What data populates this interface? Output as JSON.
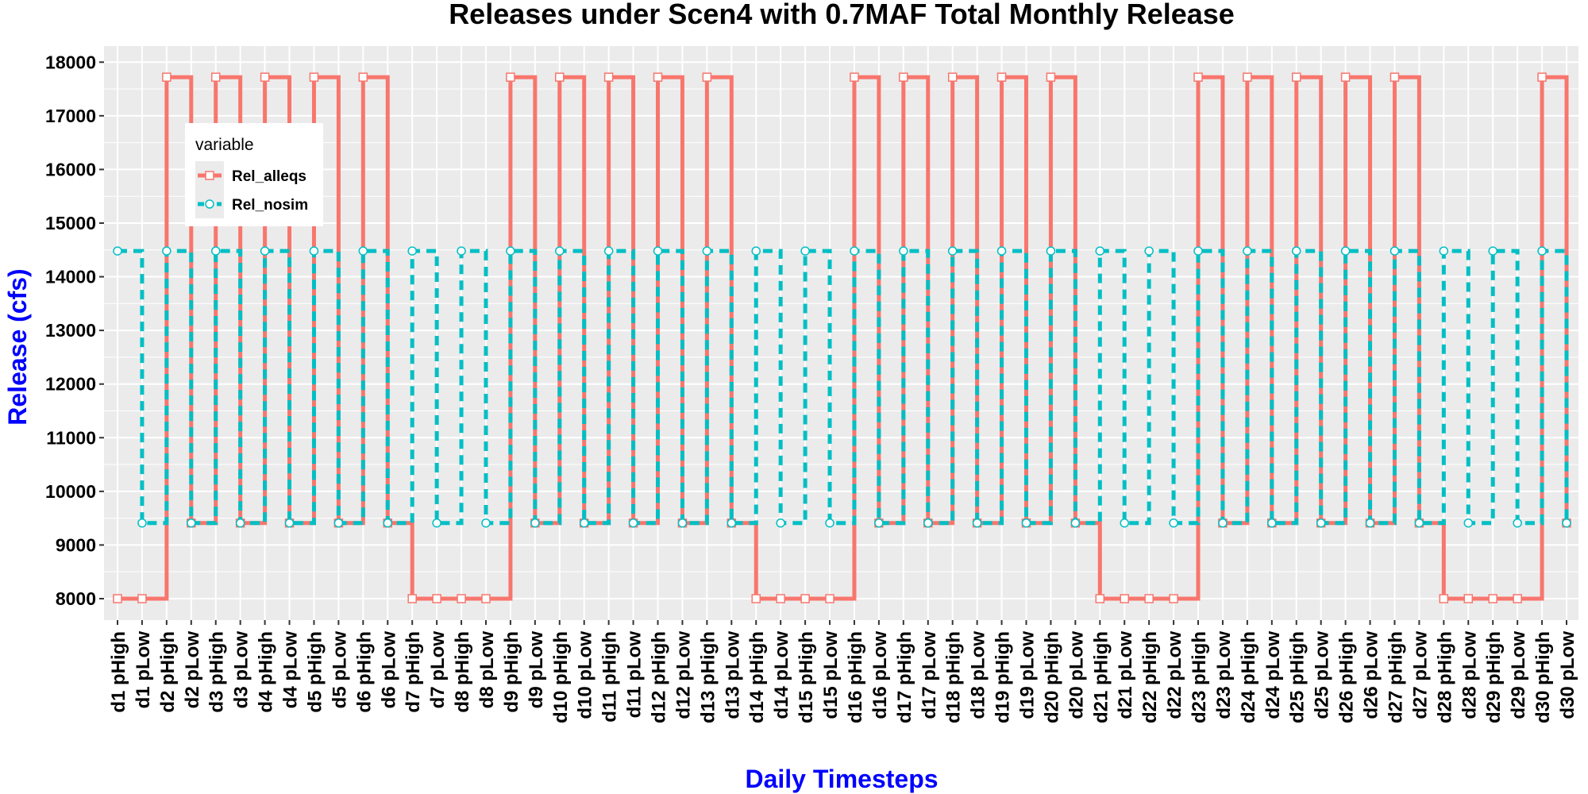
{
  "chart_data": {
    "type": "line",
    "title": "Releases under Scen4 with 0.7MAF Total Monthly Release",
    "xlabel": "Daily Timesteps",
    "ylabel": "Release (cfs)",
    "step": true,
    "ylim": [
      7600,
      18300
    ],
    "yticks": [
      8000,
      9000,
      10000,
      11000,
      12000,
      13000,
      14000,
      15000,
      16000,
      17000,
      18000
    ],
    "grid": true,
    "categories": [
      "d1 pHigh",
      "d1 pLow",
      "d2 pHigh",
      "d2 pLow",
      "d3 pHigh",
      "d3 pLow",
      "d4 pHigh",
      "d4 pLow",
      "d5 pHigh",
      "d5 pLow",
      "d6 pHigh",
      "d6 pLow",
      "d7 pHigh",
      "d7 pLow",
      "d8 pHigh",
      "d8 pLow",
      "d9 pHigh",
      "d9 pLow",
      "d10 pHigh",
      "d10 pLow",
      "d11 pHigh",
      "d11 pLow",
      "d12 pHigh",
      "d12 pLow",
      "d13 pHigh",
      "d13 pLow",
      "d14 pHigh",
      "d14 pLow",
      "d15 pHigh",
      "d15 pLow",
      "d16 pHigh",
      "d16 pLow",
      "d17 pHigh",
      "d17 pLow",
      "d18 pHigh",
      "d18 pLow",
      "d19 pHigh",
      "d19 pLow",
      "d20 pHigh",
      "d20 pLow",
      "d21 pHigh",
      "d21 pLow",
      "d22 pHigh",
      "d22 pLow",
      "d23 pHigh",
      "d23 pLow",
      "d24 pHigh",
      "d24 pLow",
      "d25 pHigh",
      "d25 pLow",
      "d26 pHigh",
      "d26 pLow",
      "d27 pHigh",
      "d27 pLow",
      "d28 pHigh",
      "d28 pLow",
      "d29 pHigh",
      "d29 pLow",
      "d30 pHigh",
      "d30 pLow"
    ],
    "legend": {
      "title": "variable",
      "position": "top-left inside"
    },
    "series": [
      {
        "name": "Rel_alleqs",
        "color": "#F8766D",
        "line_style": "solid",
        "marker": "square",
        "values": [
          8000,
          8000,
          17720,
          9410,
          17720,
          9410,
          17720,
          9410,
          17720,
          9410,
          17720,
          9410,
          8000,
          8000,
          8000,
          8000,
          17720,
          9410,
          17720,
          9410,
          17720,
          9410,
          17720,
          9410,
          17720,
          9410,
          8000,
          8000,
          8000,
          8000,
          17720,
          9410,
          17720,
          9410,
          17720,
          9410,
          17720,
          9410,
          17720,
          9410,
          8000,
          8000,
          8000,
          8000,
          17720,
          9410,
          17720,
          9410,
          17720,
          9410,
          17720,
          9410,
          17720,
          9410,
          8000,
          8000,
          8000,
          8000,
          17720,
          9410
        ]
      },
      {
        "name": "Rel_nosim",
        "color": "#00BFC4",
        "line_style": "dashed",
        "marker": "circle",
        "values": [
          14480,
          9410,
          14480,
          9410,
          14480,
          9410,
          14480,
          9410,
          14480,
          9410,
          14480,
          9410,
          14480,
          9410,
          14480,
          9410,
          14480,
          9410,
          14480,
          9410,
          14480,
          9410,
          14480,
          9410,
          14480,
          9410,
          14480,
          9410,
          14480,
          9410,
          14480,
          9410,
          14480,
          9410,
          14480,
          9410,
          14480,
          9410,
          14480,
          9410,
          14480,
          9410,
          14480,
          9410,
          14480,
          9410,
          14480,
          9410,
          14480,
          9410,
          14480,
          9410,
          14480,
          9410,
          14480,
          9410,
          14480,
          9410,
          14480,
          9410
        ]
      }
    ]
  }
}
